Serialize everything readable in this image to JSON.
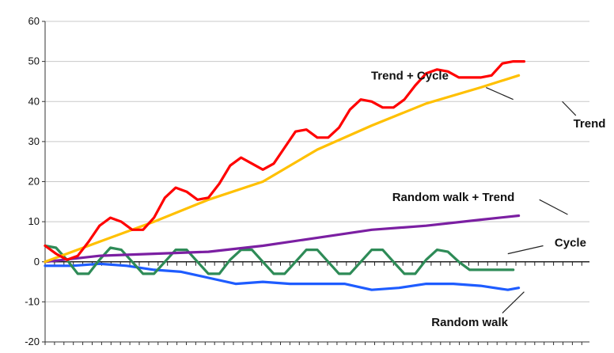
{
  "chart_data": {
    "type": "line",
    "title": "",
    "xlabel": "",
    "ylabel": "",
    "ylim": [
      -20,
      60
    ],
    "yticks": [
      -20,
      -10,
      0,
      10,
      20,
      30,
      40,
      50,
      60
    ],
    "grid": "horizontal",
    "legend": "none (inline annotations with leader lines)",
    "series": [
      {
        "name": "Trend + Cycle",
        "color": "#ff0000",
        "x": [
          0,
          2,
          4,
          6,
          8,
          10,
          12,
          14,
          16,
          18,
          20,
          22,
          24,
          26,
          28,
          30,
          32,
          34,
          36,
          38,
          40,
          42,
          44,
          46,
          48,
          50,
          52,
          54,
          56,
          58,
          60,
          62,
          64,
          66,
          68,
          70,
          72,
          74,
          76,
          78,
          80,
          82,
          84,
          86,
          88,
          90,
          92,
          94,
          96,
          98,
          100
        ],
        "y": [
          4,
          2,
          0.5,
          1.5,
          5,
          9,
          11,
          10,
          8,
          8,
          11,
          16,
          18.5,
          17.5,
          15.5,
          16,
          19.5,
          24,
          26,
          24.5,
          23,
          24.5,
          28.5,
          32.5,
          33,
          31,
          31,
          33.5,
          38,
          40.5,
          40,
          38.5,
          38.5,
          40.5,
          44,
          47,
          48,
          47.5,
          46,
          46,
          46,
          46.5,
          49.5,
          50,
          50,
          50,
          50,
          50,
          50,
          50,
          50
        ]
      },
      {
        "name": "Trend",
        "color": "#ffc000",
        "x": [
          0,
          10,
          20,
          30,
          40,
          50,
          60,
          70,
          80,
          87
        ],
        "y": [
          0,
          5,
          10,
          15.5,
          20,
          28,
          34,
          39.5,
          43.5,
          46.5
        ]
      },
      {
        "name": "Random walk + Trend",
        "color": "#7b1fa2",
        "x": [
          0,
          10,
          20,
          30,
          40,
          50,
          60,
          70,
          80,
          87
        ],
        "y": [
          0,
          1.5,
          2,
          2.5,
          4,
          6,
          8,
          9,
          10.5,
          11.5
        ]
      },
      {
        "name": "Cycle",
        "color": "#2e8b57",
        "x": [
          0,
          2,
          4,
          6,
          8,
          10,
          12,
          14,
          16,
          18,
          20,
          22,
          24,
          26,
          28,
          30,
          32,
          34,
          36,
          38,
          40,
          42,
          44,
          46,
          48,
          50,
          52,
          54,
          56,
          58,
          60,
          62,
          64,
          66,
          68,
          70,
          72,
          74,
          76,
          78,
          80,
          82,
          84,
          86
        ],
        "y": [
          4,
          3.5,
          0.5,
          -3,
          -3,
          0.5,
          3.5,
          3,
          0,
          -3,
          -3,
          0,
          3,
          3,
          0,
          -3,
          -3,
          0.5,
          3,
          3,
          0,
          -3,
          -3,
          0,
          3,
          3,
          0,
          -3,
          -3,
          0,
          3,
          3,
          0,
          -3,
          -3,
          0.5,
          3,
          2.5,
          0,
          -2,
          -2,
          -2,
          -2,
          -2
        ]
      },
      {
        "name": "Random walk",
        "color": "#1e5cff",
        "x": [
          0,
          5,
          10,
          15,
          20,
          25,
          30,
          35,
          40,
          45,
          50,
          55,
          60,
          65,
          70,
          75,
          80,
          85,
          87
        ],
        "y": [
          -1,
          -1,
          -0.5,
          -1,
          -2,
          -2.5,
          -4,
          -5.5,
          -5,
          -5.5,
          -5.5,
          -5.5,
          -7,
          -6.5,
          -5.5,
          -5.5,
          -6,
          -7,
          -6.5
        ]
      }
    ],
    "annotations": [
      {
        "text": "Trend + Cycle"
      },
      {
        "text": "Trend"
      },
      {
        "text": "Random walk + Trend"
      },
      {
        "text": "Cycle"
      },
      {
        "text": "Random walk"
      }
    ]
  }
}
